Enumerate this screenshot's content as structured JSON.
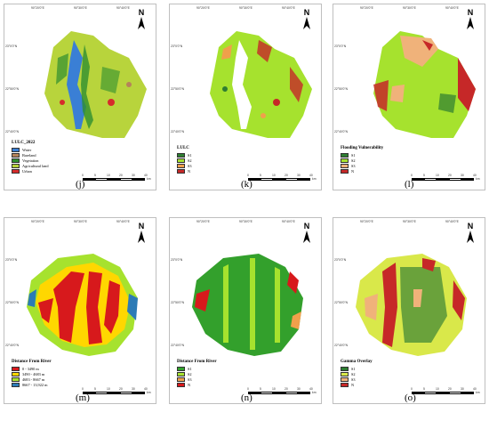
{
  "panels": {
    "j": {
      "label": "(j)",
      "legend_title": "LULC_2022",
      "legend": [
        {
          "label": "Water",
          "color": "#3a7fd5"
        },
        {
          "label": "Bareland",
          "color": "#b5835a"
        },
        {
          "label": "Vegetation",
          "color": "#2f8f2f"
        },
        {
          "label": "Agricultural land",
          "color": "#b8d43c"
        },
        {
          "label": "Urban",
          "color": "#d62b2b"
        }
      ]
    },
    "k": {
      "label": "(k)",
      "legend_title": "LULC",
      "legend": [
        {
          "label": "S1",
          "color": "#2e7d32"
        },
        {
          "label": "S2",
          "color": "#a6e22e"
        },
        {
          "label": "S3",
          "color": "#f0a04b"
        },
        {
          "label": "N",
          "color": "#c62828"
        }
      ]
    },
    "l": {
      "label": "(l)",
      "legend_title": "Flooding Vulnerability",
      "legend": [
        {
          "label": "S1",
          "color": "#2e7d32"
        },
        {
          "label": "S2",
          "color": "#a6e22e"
        },
        {
          "label": "S3",
          "color": "#f0b27a"
        },
        {
          "label": "N",
          "color": "#c62828"
        }
      ]
    },
    "m": {
      "label": "(m)",
      "legend_title": "Distance From River",
      "legend": [
        {
          "label": "0 - 3490 m",
          "color": "#d7191c"
        },
        {
          "label": "3490 - 4683 m",
          "color": "#ffd700"
        },
        {
          "label": "4683 - 8667 m",
          "color": "#a6e22e"
        },
        {
          "label": "8667 - 13,922 m",
          "color": "#2c7bb6"
        }
      ]
    },
    "n": {
      "label": "(n)",
      "legend_title": "Distance From River",
      "legend": [
        {
          "label": "S1",
          "color": "#33a02c"
        },
        {
          "label": "S2",
          "color": "#a6e22e"
        },
        {
          "label": "S3",
          "color": "#f0a04b"
        },
        {
          "label": "N",
          "color": "#d7191c"
        }
      ]
    },
    "o": {
      "label": "(o)",
      "legend_title": "Gamma Overlay",
      "legend": [
        {
          "label": "S1",
          "color": "#2e7d32"
        },
        {
          "label": "S2",
          "color": "#d9e84a"
        },
        {
          "label": "S3",
          "color": "#f0b27a"
        },
        {
          "label": "N",
          "color": "#c62828"
        }
      ]
    }
  },
  "north_label": "N",
  "scale_ticks": [
    "0",
    "5",
    "10",
    "20",
    "30",
    "40"
  ],
  "scale_unit": "km",
  "lon_ticks": [
    "90°20'0\"E",
    "90°30'0\"E",
    "90°40'0\"E"
  ],
  "lat_ticks": [
    "23°0'0\"N",
    "22°50'0\"N",
    "22°40'0\"N"
  ]
}
